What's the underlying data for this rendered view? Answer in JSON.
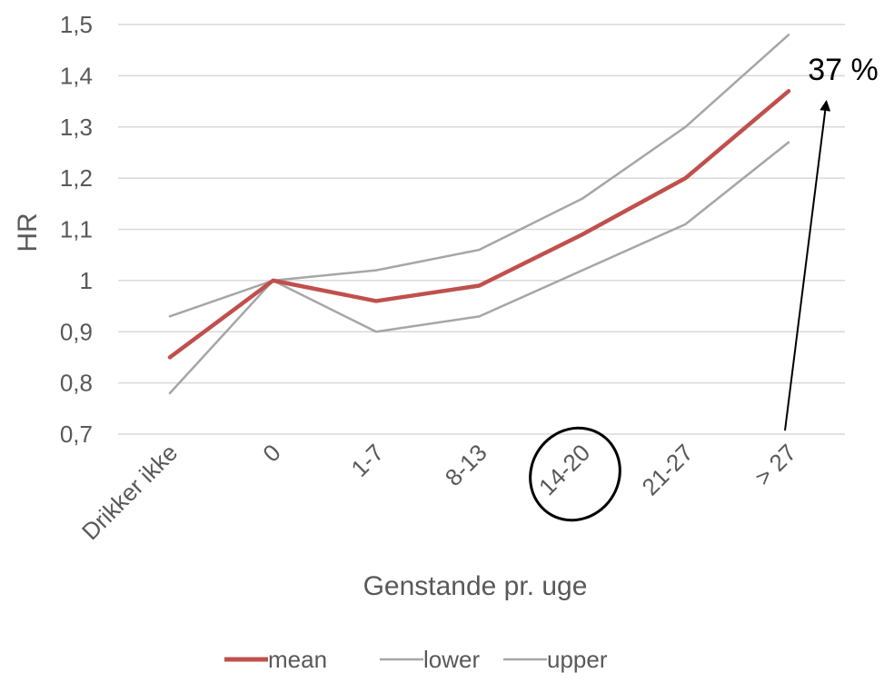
{
  "chart_data": {
    "type": "line",
    "categories": [
      "Drikker ikke",
      "0",
      "1-7",
      "8-13",
      "14-20",
      "21-27",
      "> 27"
    ],
    "series": [
      {
        "name": "mean",
        "values": [
          0.85,
          1.0,
          0.96,
          0.99,
          1.09,
          1.2,
          1.37
        ],
        "color": "#C0504D"
      },
      {
        "name": "lower",
        "values": [
          0.78,
          1.0,
          0.9,
          0.93,
          1.02,
          1.11,
          1.27
        ],
        "color": "#A6A6A6"
      },
      {
        "name": "upper",
        "values": [
          0.93,
          1.0,
          1.02,
          1.06,
          1.16,
          1.3,
          1.48
        ],
        "color": "#A6A6A6"
      }
    ],
    "title": "",
    "xlabel": "Genstande pr. uge",
    "ylabel": "HR",
    "ylim": [
      0.7,
      1.5
    ],
    "yticks": [
      0.7,
      0.8,
      0.9,
      1.0,
      1.1,
      1.2,
      1.3,
      1.4,
      1.5
    ],
    "ytick_labels": [
      "0,7",
      "0,8",
      "0,9",
      "1",
      "1,1",
      "1,2",
      "1,3",
      "1,4",
      "1,5"
    ],
    "grid": true,
    "legend_position": "bottom",
    "annotations": [
      {
        "type": "arrow-label",
        "text": "37 %",
        "category": "> 27"
      },
      {
        "type": "circle",
        "category": "14-20"
      }
    ]
  }
}
